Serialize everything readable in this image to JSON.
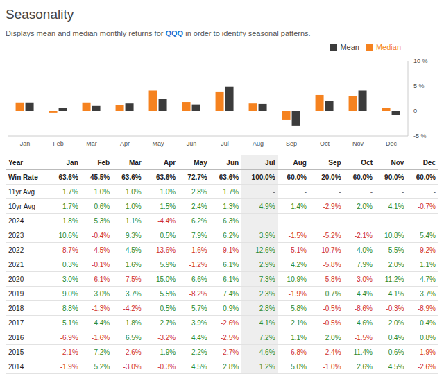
{
  "title": "Seasonality",
  "subtitle": "Displays mean and median monthly returns for QQQ in order to identify seasonal patterns.",
  "subtitle_link": "QQQ",
  "chart_data": {
    "type": "bar",
    "categories": [
      "Jan",
      "Feb",
      "Mar",
      "Apr",
      "May",
      "Jun",
      "Jul",
      "Aug",
      "Sep",
      "Oct",
      "Nov",
      "Dec"
    ],
    "series": [
      {
        "name": "Median",
        "color": "#f5821f",
        "values": [
          1.7,
          -0.4,
          1.7,
          1.2,
          4.1,
          1.8,
          3.9,
          1.5,
          -1.8,
          3.2,
          3.0,
          0.6
        ]
      },
      {
        "name": "Mean",
        "color": "#3c3c3c",
        "values": [
          1.7,
          0.6,
          1.0,
          1.5,
          2.4,
          1.3,
          4.9,
          1.4,
          -2.9,
          2.0,
          4.1,
          -0.7
        ]
      }
    ],
    "ylim": [
      -5,
      10
    ],
    "yticks": [
      {
        "value": -5,
        "label": "-5 %"
      },
      0,
      {
        "value": 5,
        "label": "5 %"
      },
      {
        "value": 10,
        "label": "10 %"
      }
    ],
    "grid": false,
    "legend": "top-right"
  },
  "table": {
    "columns": [
      "Year",
      "Jan",
      "Feb",
      "Mar",
      "Apr",
      "May",
      "Jun",
      "Jul",
      "Aug",
      "Sep",
      "Oct",
      "Nov",
      "Dec"
    ],
    "rows": [
      {
        "label": "Win Rate",
        "cells": [
          "63.6%",
          "45.5%",
          "63.6%",
          "63.6%",
          "72.7%",
          "63.6%",
          "100.0%",
          "60.0%",
          "20.0%",
          "60.0%",
          "90.0%",
          "60.0%"
        ]
      },
      {
        "label": "11yr Avg",
        "cells": [
          "1.7%",
          "1.0%",
          "1.0%",
          "1.0%",
          "2.8%",
          "1.7%",
          "-",
          "-",
          "-",
          "-",
          "-",
          "-"
        ]
      },
      {
        "label": "10yr Avg",
        "cells": [
          "1.7%",
          "0.6%",
          "1.0%",
          "1.5%",
          "2.4%",
          "1.3%",
          "4.9%",
          "1.4%",
          "-2.9%",
          "2.0%",
          "4.1%",
          "-0.7%"
        ]
      },
      {
        "label": "2024",
        "cells": [
          "1.8%",
          "5.3%",
          "1.1%",
          "-4.4%",
          "6.2%",
          "6.3%",
          null,
          null,
          null,
          null,
          null,
          null
        ]
      },
      {
        "label": "2023",
        "cells": [
          "10.6%",
          "-0.4%",
          "9.3%",
          "0.5%",
          "7.9%",
          "6.2%",
          "3.9%",
          "-1.5%",
          "-5.2%",
          "-2.1%",
          "10.8%",
          "5.4%"
        ]
      },
      {
        "label": "2022",
        "cells": [
          "-8.7%",
          "-4.5%",
          "4.5%",
          "-13.6%",
          "-1.6%",
          "-9.1%",
          "12.6%",
          "-5.1%",
          "-10.7%",
          "4.0%",
          "5.5%",
          "-9.2%"
        ]
      },
      {
        "label": "2021",
        "cells": [
          "0.3%",
          "-0.1%",
          "1.6%",
          "5.9%",
          "-1.2%",
          "6.1%",
          "2.9%",
          "4.2%",
          "-5.8%",
          "7.9%",
          "2.0%",
          "1.1%"
        ]
      },
      {
        "label": "2020",
        "cells": [
          "3.0%",
          "-6.1%",
          "-7.5%",
          "15.0%",
          "6.6%",
          "6.1%",
          "7.3%",
          "10.9%",
          "-5.8%",
          "-3.0%",
          "11.2%",
          "4.7%"
        ]
      },
      {
        "label": "2019",
        "cells": [
          "9.0%",
          "3.0%",
          "3.7%",
          "5.5%",
          "-8.2%",
          "7.4%",
          "2.3%",
          "-1.9%",
          "0.7%",
          "4.4%",
          "4.1%",
          "3.7%"
        ]
      },
      {
        "label": "2018",
        "cells": [
          "8.8%",
          "-1.3%",
          "-4.2%",
          "0.5%",
          "5.7%",
          "0.9%",
          "2.8%",
          "5.8%",
          "-0.5%",
          "-8.6%",
          "-0.3%",
          "-8.9%"
        ]
      },
      {
        "label": "2017",
        "cells": [
          "5.1%",
          "4.4%",
          "1.8%",
          "2.7%",
          "3.9%",
          "-2.6%",
          "4.1%",
          "2.1%",
          "-0.5%",
          "4.6%",
          "2.0%",
          "0.4%"
        ]
      },
      {
        "label": "2016",
        "cells": [
          "-6.9%",
          "-1.6%",
          "6.5%",
          "-3.2%",
          "4.4%",
          "-2.5%",
          "7.2%",
          "1.1%",
          "2.0%",
          "-1.5%",
          "0.4%",
          "0.8%"
        ]
      },
      {
        "label": "2015",
        "cells": [
          "-2.1%",
          "7.2%",
          "-2.6%",
          "1.9%",
          "2.2%",
          "-2.7%",
          "4.6%",
          "-6.8%",
          "-2.4%",
          "11.4%",
          "0.6%",
          "-1.9%"
        ]
      },
      {
        "label": "2014",
        "cells": [
          "-1.9%",
          "5.2%",
          "-3.0%",
          "-0.3%",
          "4.5%",
          "2.8%",
          "1.2%",
          "5.0%",
          "-1.0%",
          "2.6%",
          "4.5%",
          "-2.6%"
        ]
      }
    ]
  }
}
